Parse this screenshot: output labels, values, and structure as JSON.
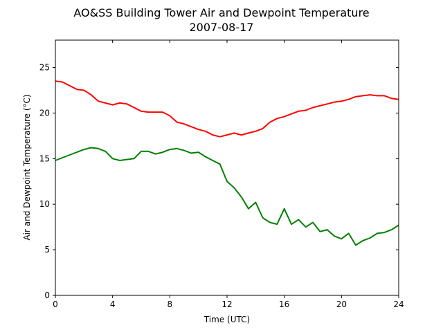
{
  "chart_data": {
    "type": "line",
    "title": "AO&SS Building Tower Air and Dewpoint Temperature",
    "subtitle": "2007-08-17",
    "xlabel": "Time (UTC)",
    "ylabel": "Air and Dewpoint Temperature (°C)",
    "xlim": [
      0,
      24
    ],
    "ylim": [
      0,
      28
    ],
    "xticks": [
      0,
      4,
      8,
      12,
      16,
      20,
      24
    ],
    "yticks": [
      0,
      5,
      10,
      15,
      20,
      25
    ],
    "grid": false,
    "legend": "none",
    "series": [
      {
        "color": "#ff0000",
        "x": [
          0,
          0.5,
          1,
          1.5,
          2,
          2.5,
          3,
          3.5,
          4,
          4.5,
          5,
          5.5,
          6,
          6.5,
          7,
          7.5,
          8,
          8.5,
          9,
          9.5,
          10,
          10.5,
          11,
          11.5,
          12,
          12.5,
          13,
          13.5,
          14,
          14.5,
          15,
          15.5,
          16,
          16.5,
          17,
          17.5,
          18,
          18.5,
          19,
          19.5,
          20,
          20.5,
          21,
          21.5,
          22,
          22.5,
          23,
          23.5,
          24
        ],
        "values": [
          23.5,
          23.4,
          23.0,
          22.6,
          22.5,
          22.0,
          21.3,
          21.1,
          20.9,
          21.1,
          21.0,
          20.6,
          20.2,
          20.1,
          20.1,
          20.1,
          19.7,
          19.0,
          18.8,
          18.5,
          18.2,
          18.0,
          17.6,
          17.4,
          17.6,
          17.8,
          17.6,
          17.8,
          18.0,
          18.3,
          19.0,
          19.4,
          19.6,
          19.9,
          20.2,
          20.3,
          20.6,
          20.8,
          21.0,
          21.2,
          21.3,
          21.5,
          21.8,
          21.9,
          22.0,
          21.9,
          21.9,
          21.6,
          21.5
        ]
      },
      {
        "color": "#008000",
        "x": [
          0,
          0.5,
          1,
          1.5,
          2,
          2.5,
          3,
          3.5,
          4,
          4.5,
          5,
          5.5,
          6,
          6.5,
          7,
          7.5,
          8,
          8.5,
          9,
          9.5,
          10,
          10.5,
          11,
          11.5,
          12,
          12.5,
          13,
          13.5,
          14,
          14.5,
          15,
          15.5,
          16,
          16.5,
          17,
          17.5,
          18,
          18.5,
          19,
          19.5,
          20,
          20.5,
          21,
          21.5,
          22,
          22.5,
          23,
          23.5,
          24
        ],
        "values": [
          14.8,
          15.1,
          15.4,
          15.7,
          16.0,
          16.2,
          16.1,
          15.8,
          15.0,
          14.8,
          14.9,
          15.0,
          15.8,
          15.8,
          15.5,
          15.7,
          16.0,
          16.1,
          15.9,
          15.6,
          15.7,
          15.2,
          14.8,
          14.4,
          12.5,
          11.8,
          10.8,
          9.5,
          10.2,
          8.5,
          8.0,
          7.8,
          9.5,
          7.8,
          8.3,
          7.5,
          8.0,
          7.0,
          7.2,
          6.5,
          6.2,
          6.8,
          5.5,
          6.0,
          6.3,
          6.8,
          6.9,
          7.2,
          7.7
        ]
      }
    ]
  }
}
